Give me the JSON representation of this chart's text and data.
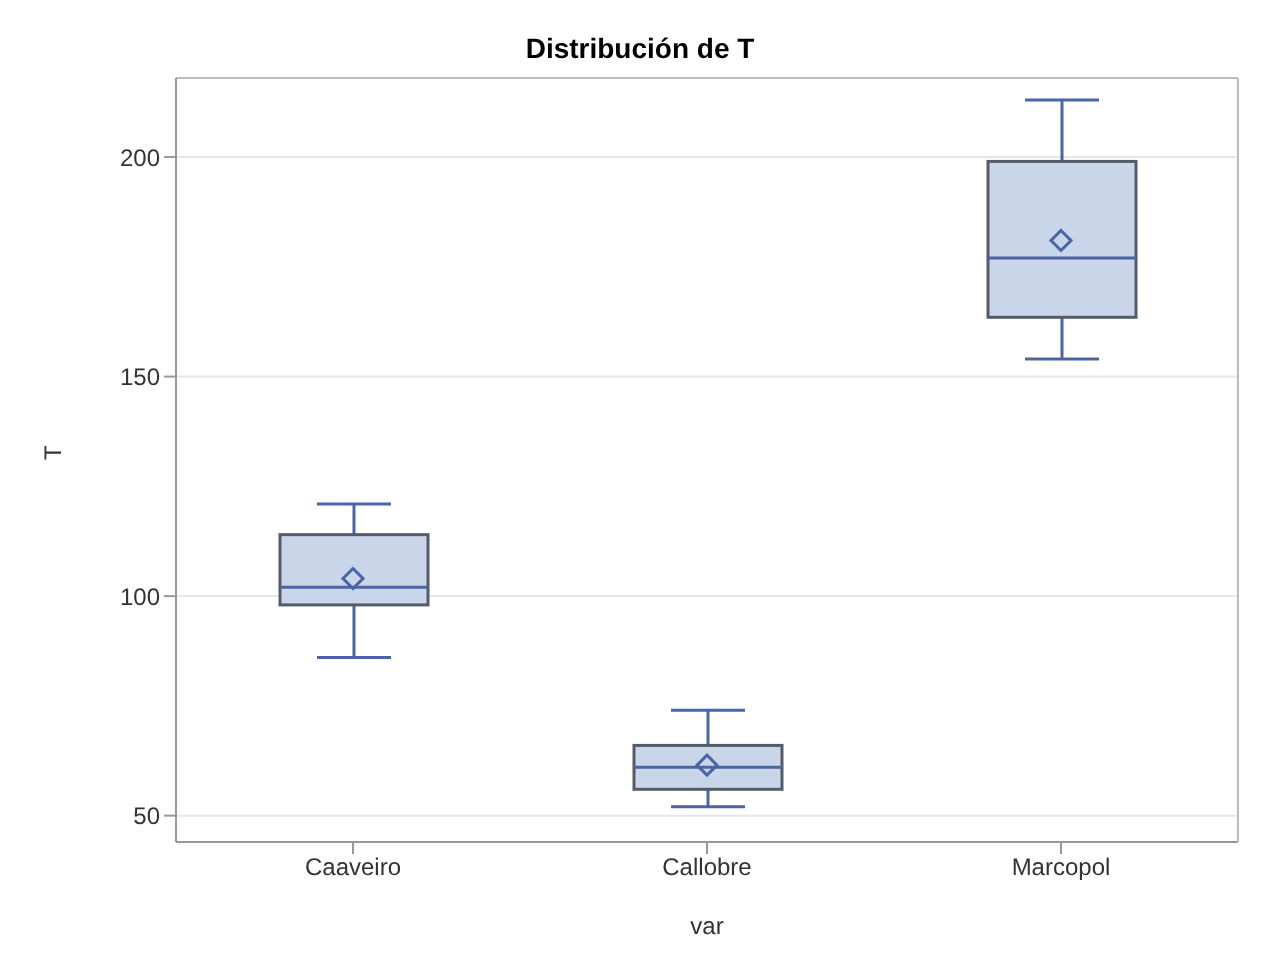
{
  "chart_data": {
    "type": "box",
    "title": "Distribución de T",
    "xlabel": "var",
    "ylabel": "T",
    "categories": [
      "Caaveiro",
      "Callobre",
      "Marcopol"
    ],
    "color": "#c9d5e8",
    "boxes": [
      {
        "low": 86,
        "q1": 98,
        "median": 102,
        "q3": 114,
        "high": 121,
        "mean": 104
      },
      {
        "low": 52,
        "q1": 56,
        "median": 61,
        "q3": 66,
        "high": 74,
        "mean": 61.5
      },
      {
        "low": 154,
        "q1": 163.5,
        "median": 177,
        "q3": 199,
        "high": 213,
        "mean": 181
      }
    ],
    "ylim": [
      44,
      218
    ],
    "yticks": [
      50,
      100,
      150,
      200
    ],
    "grid": "y"
  }
}
